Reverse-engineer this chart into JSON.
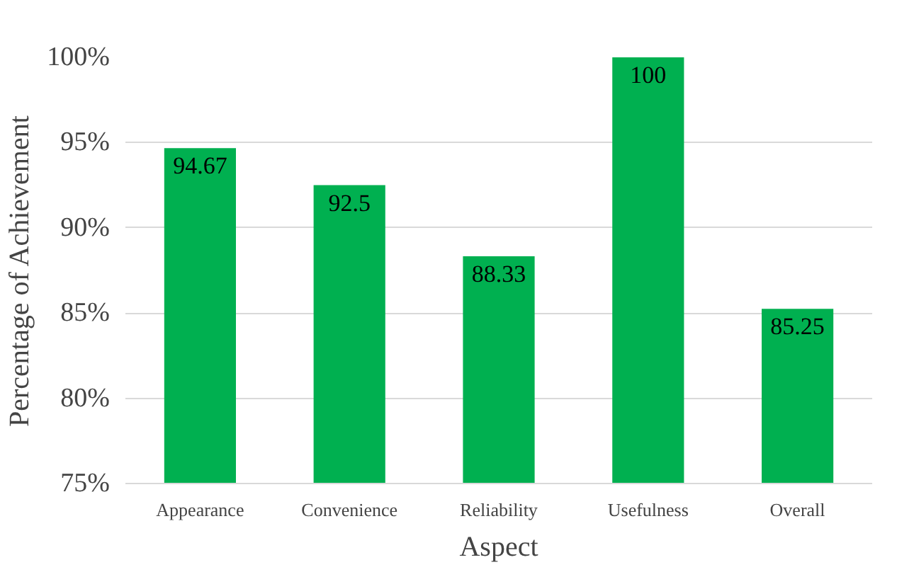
{
  "chart_data": {
    "type": "bar",
    "xlabel": "Aspect",
    "ylabel": "Percentage of Achievement",
    "categories": [
      "Appearance",
      "Convenience",
      "Reliability",
      "Usefulness",
      "Overall"
    ],
    "values": [
      94.67,
      92.5,
      88.33,
      100,
      85.25
    ],
    "color": "#00b050",
    "ylim": [
      75,
      100
    ],
    "yticks": [
      {
        "value": 75,
        "label": "75%"
      },
      {
        "value": 80,
        "label": "80%"
      },
      {
        "value": 85,
        "label": "85%"
      },
      {
        "value": 90,
        "label": "90%"
      },
      {
        "value": 95,
        "label": "95%"
      },
      {
        "value": 100,
        "label": "100%"
      }
    ],
    "grid": "y",
    "data_labels": true
  }
}
